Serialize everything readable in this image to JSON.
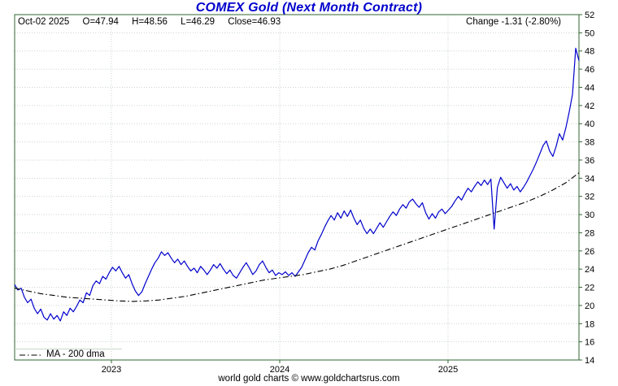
{
  "header": {
    "title": "COMEX Gold (Next Month Contract)",
    "parts": [
      "Oct-02 2025",
      "O=47.94",
      "H=48.56",
      "L=46.29",
      "Close=46.93"
    ],
    "change": "Change -1.31 (-2.80%)"
  },
  "legend": {
    "ma_label": "MA - 200 dma"
  },
  "footer": {
    "credit": "world gold charts © www.goldchartsrus.com"
  },
  "colors": {
    "title": "#0000cc",
    "price": "#0000cc",
    "ma": "#000000",
    "border": "#336633",
    "grid": "#c9d6c9",
    "text": "#000000"
  },
  "chart_data": {
    "type": "line",
    "title": "COMEX Gold (Next Month Contract)",
    "x_axis": {
      "range_years": [
        2022.425,
        2025.778
      ],
      "ticks": [
        {
          "t": 2023,
          "label": "2023"
        },
        {
          "t": 2024,
          "label": "2024"
        },
        {
          "t": 2025,
          "label": "2025"
        }
      ]
    },
    "y_axis": {
      "range": [
        14,
        52
      ],
      "tick_step": 2,
      "side": "right",
      "tick_labels": [
        "14",
        "16",
        "18",
        "20",
        "22",
        "24",
        "26",
        "28",
        "30",
        "32",
        "34",
        "36",
        "38",
        "40",
        "42",
        "44",
        "46",
        "48",
        "50",
        "52"
      ]
    },
    "series": [
      {
        "name": "COMEX Gold price",
        "color": "#0000cc",
        "line_style": "solid",
        "values": [
          22.3,
          21.7,
          21.9,
          20.9,
          20.3,
          20.7,
          19.7,
          19.1,
          19.6,
          18.7,
          18.4,
          19.1,
          18.5,
          18.9,
          18.3,
          19.3,
          18.9,
          19.7,
          19.3,
          19.9,
          20.6,
          20.3,
          21.4,
          21.1,
          22.2,
          22.7,
          22.4,
          23.2,
          22.9,
          23.6,
          24.2,
          23.8,
          24.3,
          23.6,
          23.0,
          23.4,
          22.4,
          21.6,
          21.1,
          21.5,
          22.4,
          23.2,
          24.0,
          24.7,
          25.2,
          25.9,
          25.5,
          25.8,
          25.2,
          24.7,
          25.1,
          24.5,
          24.9,
          24.3,
          23.8,
          24.1,
          23.6,
          24.3,
          23.9,
          23.4,
          23.9,
          24.5,
          24.1,
          24.6,
          24.0,
          23.5,
          23.9,
          23.3,
          23.0,
          23.6,
          24.2,
          24.7,
          24.1,
          23.4,
          23.8,
          24.5,
          24.9,
          24.2,
          23.6,
          23.9,
          23.3,
          23.6,
          23.4,
          23.7,
          23.3,
          23.6,
          23.2,
          23.7,
          24.2,
          25.0,
          25.8,
          26.4,
          26.1,
          27.1,
          27.8,
          28.6,
          29.3,
          29.9,
          29.4,
          30.2,
          29.6,
          30.4,
          29.8,
          30.5,
          29.6,
          28.9,
          29.4,
          28.5,
          27.9,
          28.4,
          27.9,
          28.5,
          29.1,
          28.6,
          29.2,
          29.8,
          30.3,
          29.9,
          30.6,
          31.1,
          30.7,
          31.4,
          31.7,
          31.2,
          30.8,
          31.3,
          30.2,
          29.5,
          30.1,
          29.6,
          30.3,
          30.6,
          30.1,
          30.5,
          30.9,
          31.5,
          32.0,
          31.6,
          32.3,
          32.9,
          32.5,
          33.1,
          33.6,
          33.2,
          33.8,
          33.3,
          33.9,
          28.4,
          33.0,
          34.1,
          33.5,
          32.9,
          33.4,
          32.7,
          33.1,
          32.5,
          33.0,
          33.6,
          34.3,
          35.0,
          35.8,
          36.7,
          37.6,
          38.1,
          37.0,
          36.4,
          37.5,
          38.9,
          38.2,
          39.6,
          41.3,
          43.2,
          48.3,
          46.93
        ]
      },
      {
        "name": "MA - 200 dma",
        "color": "#000000",
        "line_style": "dashdot",
        "values": [
          21.9,
          21.6,
          21.3,
          21.1,
          20.9,
          20.8,
          20.7,
          20.6,
          20.5,
          20.45,
          20.5,
          20.6,
          20.8,
          21.0,
          21.3,
          21.6,
          21.9,
          22.2,
          22.5,
          22.8,
          23.0,
          23.2,
          23.4,
          23.7,
          24.0,
          24.4,
          24.9,
          25.4,
          25.9,
          26.4,
          26.9,
          27.4,
          27.9,
          28.4,
          28.9,
          29.4,
          29.9,
          30.4,
          30.9,
          31.4,
          32.0,
          32.7,
          33.5,
          34.6
        ]
      }
    ],
    "latest": {
      "date": "Oct-02 2025",
      "open": 47.94,
      "high": 48.56,
      "low": 46.29,
      "close": 46.93,
      "change": -1.31,
      "change_pct": "-2.80%"
    }
  }
}
